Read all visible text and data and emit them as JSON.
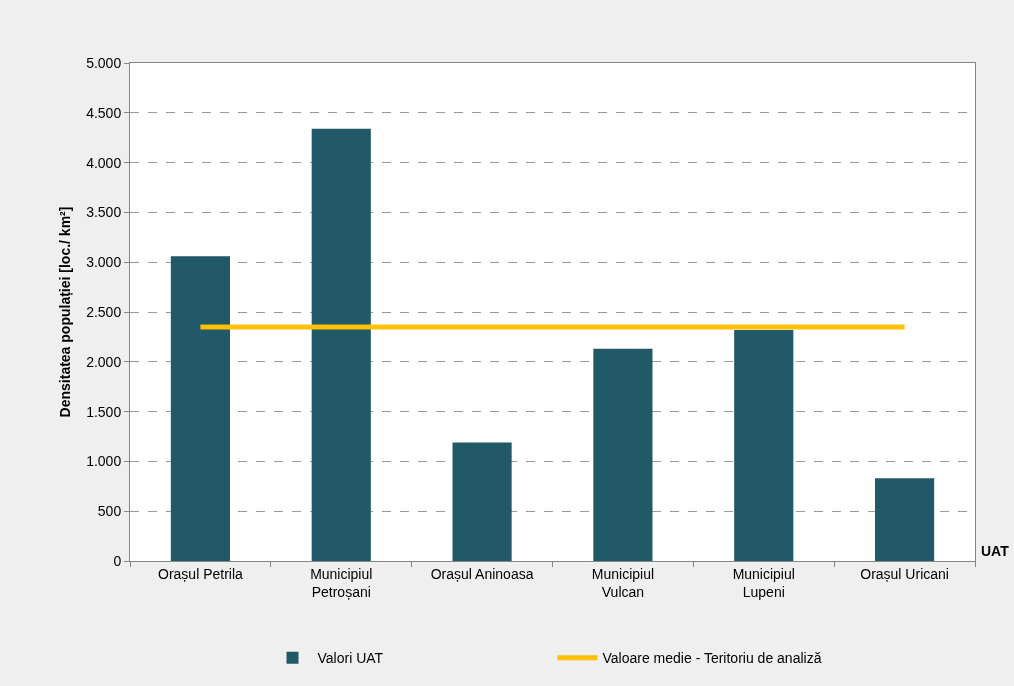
{
  "chart_data": {
    "type": "bar",
    "categories": [
      "Orașul Petrila",
      "Municipiul Petroșani",
      "Orașul Aninoasa",
      "Municipiul Vulcan",
      "Municipiul Lupeni",
      "Orașul Uricani"
    ],
    "series": [
      {
        "name": "Valori UAT",
        "color": "#215968",
        "values": [
          3060,
          4340,
          1190,
          2130,
          2320,
          830
        ]
      },
      {
        "name": "Valoare medie - Teritoriu de analiză",
        "type": "line",
        "color": "#ffc000",
        "values": [
          2350,
          2350,
          2350,
          2350,
          2350,
          2350
        ]
      }
    ],
    "xlabel": "UAT",
    "ylabel": "Densitatea populației [loc./ km²]",
    "ylim": [
      0,
      5000
    ],
    "yticks": [
      {
        "value": 0,
        "label": "0"
      },
      {
        "value": 500,
        "label": "500"
      },
      {
        "value": 1000,
        "label": "1.000"
      },
      {
        "value": 1500,
        "label": "1.500"
      },
      {
        "value": 2000,
        "label": "2.000"
      },
      {
        "value": 2500,
        "label": "2.500"
      },
      {
        "value": 3000,
        "label": "3.000"
      },
      {
        "value": 3500,
        "label": "3.500"
      },
      {
        "value": 4000,
        "label": "4.000"
      },
      {
        "value": 4500,
        "label": "4.500"
      },
      {
        "value": 5000,
        "label": "5.000"
      }
    ],
    "grid": "y",
    "legend": "bottom"
  }
}
